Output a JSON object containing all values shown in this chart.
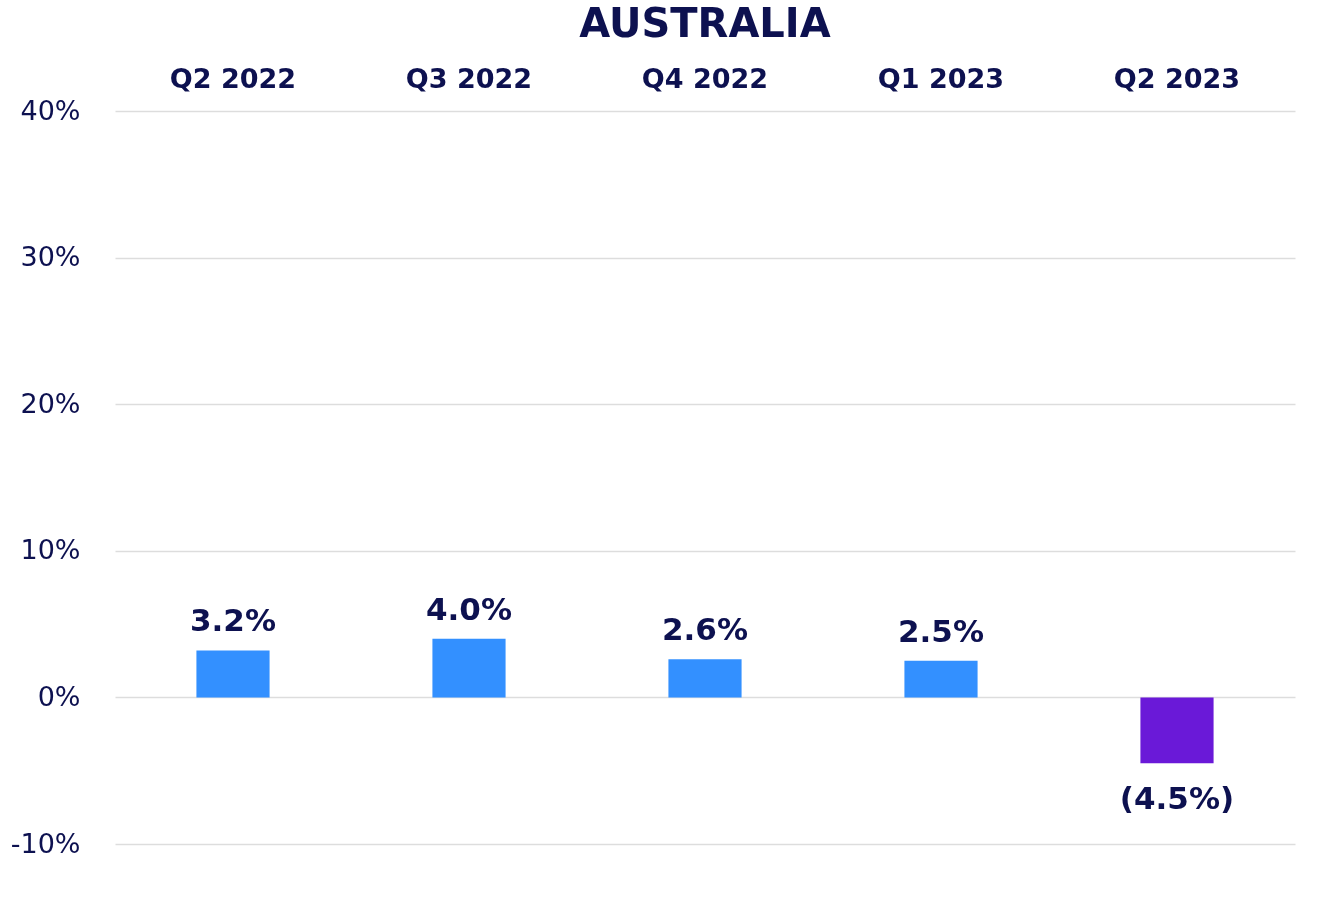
{
  "chart_data": {
    "type": "bar",
    "title": "AUSTRALIA",
    "categories": [
      "Q2 2022",
      "Q3 2022",
      "Q4 2022",
      "Q1 2023",
      "Q2 2023"
    ],
    "values": [
      3.2,
      4.0,
      2.6,
      2.5,
      -4.5
    ],
    "colors": [
      "#3390ff",
      "#3390ff",
      "#3390ff",
      "#3390ff",
      "#6a19d8"
    ],
    "value_labels": [
      "3.2%",
      "4.0%",
      "2.6%",
      "2.5%",
      "(4.5%)"
    ],
    "ylim": [
      -10,
      40
    ],
    "yticks": [
      {
        "value": -10,
        "label": "-10%"
      },
      {
        "value": 0,
        "label": "0%"
      },
      {
        "value": 10,
        "label": "10%"
      },
      {
        "value": 20,
        "label": "20%"
      },
      {
        "value": 30,
        "label": "30%"
      },
      {
        "value": 40,
        "label": "40%"
      }
    ],
    "grid": "y"
  }
}
